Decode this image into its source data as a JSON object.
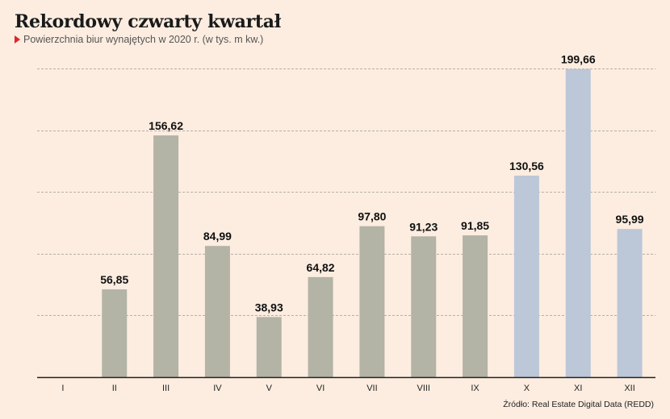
{
  "title": "Rekordowy czwarty kwartał",
  "subtitle": "Powierzchnia biur wynajętych w 2020 r. (w tys. m kw.)",
  "source": "Źródło: Real Estate Digital Data (REDD)",
  "colors": {
    "base": "#b3b3a6",
    "highlight": "#bcc7d8",
    "background": "#fcede0",
    "accent": "#e0232d"
  },
  "chart_data": {
    "type": "bar",
    "title": "Rekordowy czwarty kwartał",
    "subtitle": "Powierzchnia biur wynajętych w 2020 r. (w tys. m kw.)",
    "categories": [
      "I",
      "II",
      "III",
      "IV",
      "V",
      "VI",
      "VII",
      "VIII",
      "IX",
      "X",
      "XI",
      "XII"
    ],
    "values": [
      0,
      56.85,
      156.62,
      84.99,
      38.93,
      64.82,
      97.8,
      91.23,
      91.85,
      130.56,
      199.66,
      95.99
    ],
    "value_labels": [
      "",
      "56,85",
      "156,62",
      "84,99",
      "38,93",
      "64,82",
      "97,80",
      "91,23",
      "91,85",
      "130,56",
      "199,66",
      "95,99"
    ],
    "highlight_categories": [
      "X",
      "XI",
      "XII"
    ],
    "ylim": [
      0,
      200
    ],
    "grid": true,
    "grid_style": "dashed",
    "xlabel": "",
    "ylabel": ""
  }
}
